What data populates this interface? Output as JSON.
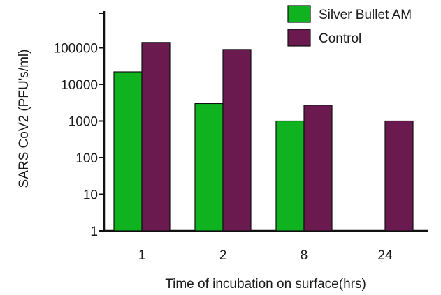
{
  "chart_data": {
    "type": "bar",
    "yscale": "log",
    "categories": [
      "1",
      "2",
      "8",
      "24"
    ],
    "series": [
      {
        "name": "Silver Bullet AM",
        "color": "#0fb21f",
        "values": [
          22000,
          3000,
          1000,
          1
        ]
      },
      {
        "name": "Control",
        "color": "#6b1a4f",
        "values": [
          140000,
          90000,
          2700,
          1000
        ]
      }
    ],
    "y_ticks": [
      "1",
      "10",
      "100",
      "1000",
      "10000",
      "100000"
    ],
    "ylim": [
      1,
      1000000
    ],
    "xlabel": "Time of incubation on surface(hrs)",
    "ylabel": "SARS CoV2 (PFU's/ml)",
    "legend": "top-right",
    "grid": false
  }
}
